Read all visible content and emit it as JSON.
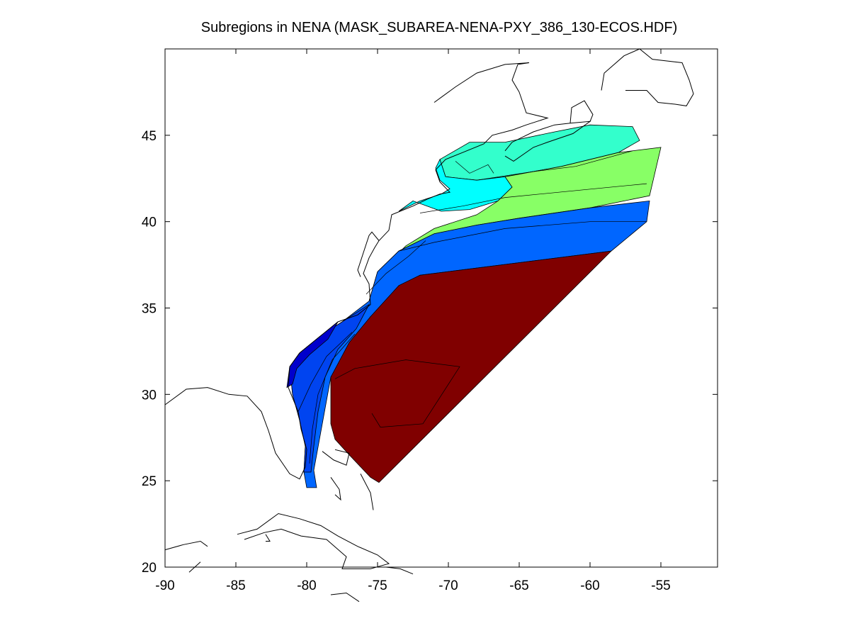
{
  "title": "Subregions in NENA (MASK_SUBAREA-NENA-PXY_386_130-ECOS.HDF)",
  "axes": {
    "xlim": [
      -90,
      -51
    ],
    "ylim": [
      20,
      50
    ],
    "xticks": [
      -90,
      -85,
      -80,
      -75,
      -70,
      -65,
      -60,
      -55
    ],
    "yticks": [
      20,
      25,
      30,
      35,
      40,
      45
    ],
    "xtick_labels": [
      "-90",
      "-85",
      "-80",
      "-75",
      "-70",
      "-65",
      "-60",
      "-55"
    ],
    "ytick_labels": [
      "20",
      "25",
      "30",
      "35",
      "40",
      "45"
    ],
    "grid": false
  },
  "colors": {
    "deep_ocean": "#800000",
    "slope_blue": "#0066ff",
    "mid_blue": "#0044f0",
    "shelf_navy": "#0000cc",
    "gulf_cyan": "#00ffff",
    "shelf_aqua": "#33ffcc",
    "slope_green": "#88ff66",
    "coastline": "#000000"
  },
  "chart_data": {
    "type": "map",
    "regions": [
      {
        "color": "#33ffcc",
        "polygon": [
          [
            -68.5,
            44.6
          ],
          [
            -66,
            44.6
          ],
          [
            -62.5,
            45.2
          ],
          [
            -60,
            45.6
          ],
          [
            -57,
            45.5
          ],
          [
            -56.5,
            44.7
          ],
          [
            -58,
            44
          ],
          [
            -62,
            43.2
          ],
          [
            -66,
            42.6
          ],
          [
            -68,
            42.4
          ],
          [
            -70.2,
            42.6
          ],
          [
            -70.6,
            43.6
          ]
        ]
      },
      {
        "color": "#00ffff",
        "polygon": [
          [
            -70.6,
            43.6
          ],
          [
            -70.2,
            42.6
          ],
          [
            -68,
            42.4
          ],
          [
            -66,
            42.6
          ],
          [
            -65.5,
            42
          ],
          [
            -66.5,
            41.2
          ],
          [
            -68.5,
            40.7
          ],
          [
            -70.5,
            40.6
          ],
          [
            -71.5,
            40.9
          ],
          [
            -72.5,
            41.2
          ],
          [
            -73.5,
            40.6
          ],
          [
            -72,
            41.2
          ],
          [
            -70.5,
            41.6
          ],
          [
            -69.9,
            41.9
          ],
          [
            -70.6,
            42.4
          ],
          [
            -70.9,
            43.1
          ]
        ]
      },
      {
        "color": "#88ff66",
        "polygon": [
          [
            -66,
            42.6
          ],
          [
            -62,
            43.2
          ],
          [
            -58,
            44
          ],
          [
            -55,
            44.3
          ],
          [
            -55.8,
            41.5
          ],
          [
            -60,
            40.8
          ],
          [
            -65,
            40.2
          ],
          [
            -68,
            39.8
          ],
          [
            -71,
            39.3
          ],
          [
            -73.5,
            38.3
          ],
          [
            -75,
            37.1
          ],
          [
            -75.6,
            35.4
          ],
          [
            -75.3,
            36.2
          ],
          [
            -74.5,
            37.4
          ],
          [
            -73,
            38.6
          ],
          [
            -71,
            39.6
          ],
          [
            -68,
            40.4
          ],
          [
            -66.5,
            41.2
          ],
          [
            -65.5,
            42
          ]
        ]
      },
      {
        "color": "#0066ff",
        "polygon": [
          [
            -55.8,
            41.2
          ],
          [
            -56,
            40
          ],
          [
            -58.5,
            38.3
          ],
          [
            -72,
            36.9
          ],
          [
            -75.5,
            34.5
          ],
          [
            -78.3,
            31
          ],
          [
            -79.5,
            25.6
          ],
          [
            -79.3,
            24.6
          ],
          [
            -80,
            24.6
          ],
          [
            -80.2,
            25.5
          ],
          [
            -80.1,
            27
          ],
          [
            -80.5,
            28.5
          ],
          [
            -81,
            30
          ],
          [
            -81.2,
            31.6
          ],
          [
            -80.5,
            32.4
          ],
          [
            -79,
            33.4
          ],
          [
            -77.5,
            34.2
          ],
          [
            -75.6,
            35.4
          ],
          [
            -75,
            37.1
          ],
          [
            -73.5,
            38.3
          ],
          [
            -71,
            39.3
          ],
          [
            -68,
            39.8
          ],
          [
            -65,
            40.2
          ],
          [
            -60,
            40.8
          ]
        ]
      },
      {
        "color": "#0044f0",
        "polygon": [
          [
            -81,
            30
          ],
          [
            -80.5,
            28.5
          ],
          [
            -80.1,
            27
          ],
          [
            -80.2,
            25.5
          ],
          [
            -79.7,
            25.5
          ],
          [
            -79.5,
            27
          ],
          [
            -79.2,
            29
          ],
          [
            -78.7,
            31
          ],
          [
            -77.8,
            32.6
          ],
          [
            -76.5,
            33.8
          ],
          [
            -75.6,
            35.2
          ],
          [
            -77.5,
            34.2
          ],
          [
            -79,
            33.4
          ],
          [
            -80.5,
            32.4
          ],
          [
            -81.2,
            31.6
          ]
        ]
      },
      {
        "color": "#0000cc",
        "polygon": [
          [
            -81.4,
            30.4
          ],
          [
            -81.2,
            31.6
          ],
          [
            -80.5,
            32.4
          ],
          [
            -79,
            33.4
          ],
          [
            -77.8,
            34.2
          ],
          [
            -78.5,
            33.2
          ],
          [
            -79.8,
            32.3
          ],
          [
            -80.7,
            31.5
          ],
          [
            -81,
            30.6
          ]
        ]
      },
      {
        "color": "#800000",
        "polygon": [
          [
            -58.5,
            38.3
          ],
          [
            -72,
            36.9
          ],
          [
            -73.5,
            36.3
          ],
          [
            -75.5,
            34.5
          ],
          [
            -77,
            33
          ],
          [
            -78.3,
            31
          ],
          [
            -78.3,
            28.3
          ],
          [
            -78,
            27.4
          ],
          [
            -77,
            26.5
          ],
          [
            -75.5,
            25.2
          ],
          [
            -74.9,
            24.9
          ]
        ]
      }
    ],
    "contours": [
      [
        [
          -78,
          30.9
        ],
        [
          -76.6,
          31.5
        ],
        [
          -73,
          32
        ],
        [
          -69.2,
          31.6
        ],
        [
          -71.8,
          28.3
        ],
        [
          -74.8,
          28.1
        ],
        [
          -75.4,
          28.9
        ]
      ],
      [
        [
          -73.5,
          38.3
        ],
        [
          -71,
          38.8
        ],
        [
          -66,
          39.6
        ],
        [
          -60,
          40
        ],
        [
          -56,
          40
        ]
      ],
      [
        [
          -72,
          40.5
        ],
        [
          -69,
          40.9
        ],
        [
          -66,
          41.4
        ],
        [
          -61,
          41.8
        ],
        [
          -56,
          42.2
        ]
      ],
      [
        [
          -68,
          42.4
        ],
        [
          -64,
          42.9
        ],
        [
          -61,
          43.2
        ],
        [
          -57,
          44.1
        ]
      ],
      [
        [
          -80.6,
          29
        ],
        [
          -79.7,
          30.6
        ],
        [
          -78.6,
          32.2
        ],
        [
          -76.8,
          33.6
        ]
      ],
      [
        [
          -79.8,
          26
        ],
        [
          -79.6,
          28
        ],
        [
          -79.2,
          30
        ],
        [
          -78.2,
          32
        ],
        [
          -76.6,
          33.5
        ]
      ],
      [
        [
          -75.8,
          35.8
        ],
        [
          -74.4,
          37
        ],
        [
          -72.8,
          38
        ],
        [
          -71.6,
          38.9
        ]
      ],
      [
        [
          -69.5,
          43.5
        ],
        [
          -68.5,
          42.8
        ],
        [
          -67.2,
          43.3
        ],
        [
          -66.8,
          42.8
        ]
      ]
    ],
    "coastlines": [
      [
        [
          -90,
          29.4
        ],
        [
          -88.5,
          30.3
        ],
        [
          -87,
          30.4
        ],
        [
          -85.5,
          30
        ],
        [
          -84.2,
          29.9
        ],
        [
          -83.2,
          29
        ],
        [
          -82.7,
          27.9
        ],
        [
          -82.2,
          26.6
        ],
        [
          -81.2,
          25.4
        ],
        [
          -80.5,
          25.1
        ],
        [
          -80.1,
          25.8
        ],
        [
          -80,
          26.8
        ],
        [
          -80.4,
          28
        ],
        [
          -80.6,
          29
        ],
        [
          -81.3,
          30.4
        ],
        [
          -81.2,
          31.6
        ],
        [
          -80.5,
          32.4
        ],
        [
          -79,
          33.4
        ],
        [
          -77.8,
          34.2
        ],
        [
          -76.4,
          34.6
        ],
        [
          -75.5,
          35.2
        ],
        [
          -75.6,
          36.4
        ],
        [
          -76,
          37
        ],
        [
          -75.6,
          37.9
        ],
        [
          -75.2,
          38.5
        ],
        [
          -74.9,
          38.9
        ],
        [
          -74.2,
          39.5
        ],
        [
          -74,
          40.4
        ],
        [
          -72.5,
          40.9
        ],
        [
          -71.5,
          41.3
        ],
        [
          -70.6,
          41.6
        ],
        [
          -69.9,
          41.7
        ],
        [
          -70.6,
          42.3
        ],
        [
          -70.9,
          43
        ],
        [
          -70.2,
          43.6
        ],
        [
          -69,
          44
        ],
        [
          -67.5,
          44.5
        ],
        [
          -66.9,
          45
        ],
        [
          -65.5,
          45.3
        ],
        [
          -64.5,
          45.6
        ],
        [
          -63,
          46
        ],
        [
          -64.5,
          46.3
        ],
        [
          -65,
          47.5
        ],
        [
          -65.5,
          48.2
        ],
        [
          -65.1,
          49.1
        ],
        [
          -64.3,
          49.2
        ],
        [
          -66,
          49.1
        ],
        [
          -68,
          48.6
        ],
        [
          -69.5,
          47.8
        ],
        [
          -70.5,
          47.2
        ],
        [
          -71,
          46.9
        ]
      ],
      [
        [
          -66,
          43.8
        ],
        [
          -65.4,
          43.5
        ],
        [
          -64,
          44.3
        ],
        [
          -63,
          44.6
        ],
        [
          -61.2,
          45.1
        ],
        [
          -60,
          45.8
        ],
        [
          -61.4,
          45.7
        ],
        [
          -62.5,
          45.6
        ],
        [
          -64,
          45.2
        ],
        [
          -65.5,
          44.6
        ],
        [
          -66,
          44.1
        ]
      ],
      [
        [
          -60,
          45.8
        ],
        [
          -59.8,
          46.2
        ],
        [
          -60.4,
          47
        ],
        [
          -61.3,
          46.6
        ],
        [
          -61.4,
          45.7
        ]
      ],
      [
        [
          -59.2,
          47.6
        ],
        [
          -59,
          48.6
        ],
        [
          -57.6,
          49.6
        ],
        [
          -56.5,
          50
        ],
        [
          -55.6,
          49.4
        ],
        [
          -53.5,
          49.2
        ],
        [
          -53,
          48.2
        ],
        [
          -52.7,
          47.4
        ],
        [
          -53.2,
          46.7
        ],
        [
          -54,
          46.8
        ],
        [
          -55.2,
          46.9
        ],
        [
          -56,
          47.6
        ],
        [
          -57.5,
          47.6
        ]
      ],
      [
        [
          -74.9,
          38.9
        ],
        [
          -75.4,
          39.4
        ],
        [
          -75.6,
          39.2
        ],
        [
          -76,
          38.2
        ],
        [
          -76.4,
          37.2
        ],
        [
          -76.2,
          36.8
        ]
      ],
      [
        [
          -78,
          26.8
        ],
        [
          -77,
          26.6
        ],
        [
          -77.2,
          25.9
        ],
        [
          -78.1,
          26.2
        ],
        [
          -78.9,
          26.7
        ]
      ],
      [
        [
          -78.3,
          25.2
        ],
        [
          -77.7,
          24.5
        ],
        [
          -77.6,
          23.9
        ],
        [
          -78,
          24.2
        ]
      ],
      [
        [
          -76.2,
          25.4
        ],
        [
          -75.5,
          24.3
        ],
        [
          -75.3,
          23.3
        ]
      ],
      [
        [
          -84.9,
          21.9
        ],
        [
          -83.5,
          22.2
        ],
        [
          -82,
          23.1
        ],
        [
          -80.5,
          22.8
        ],
        [
          -79,
          22.4
        ],
        [
          -77.8,
          21.8
        ],
        [
          -76.4,
          21.2
        ],
        [
          -75,
          20.7
        ],
        [
          -74.2,
          20.2
        ],
        [
          -75.5,
          19.9
        ],
        [
          -77.5,
          19.9
        ],
        [
          -77.2,
          20.6
        ],
        [
          -78.6,
          21.6
        ],
        [
          -80.4,
          21.8
        ],
        [
          -81.8,
          22.2
        ],
        [
          -83,
          22
        ],
        [
          -84.4,
          21.6
        ]
      ],
      [
        [
          -82.9,
          21.9
        ],
        [
          -82.6,
          21.5
        ],
        [
          -82.9,
          21.5
        ]
      ],
      [
        [
          -90,
          21
        ],
        [
          -88.7,
          21.3
        ],
        [
          -87.5,
          21.5
        ],
        [
          -87,
          21.2
        ]
      ],
      [
        [
          -87.5,
          20.3
        ],
        [
          -88.3,
          19.7
        ]
      ],
      [
        [
          -78.3,
          18.4
        ],
        [
          -77.2,
          18.5
        ],
        [
          -76.3,
          18
        ]
      ],
      [
        [
          -74.4,
          20
        ],
        [
          -73.4,
          19.9
        ],
        [
          -72.5,
          19.6
        ]
      ]
    ]
  }
}
